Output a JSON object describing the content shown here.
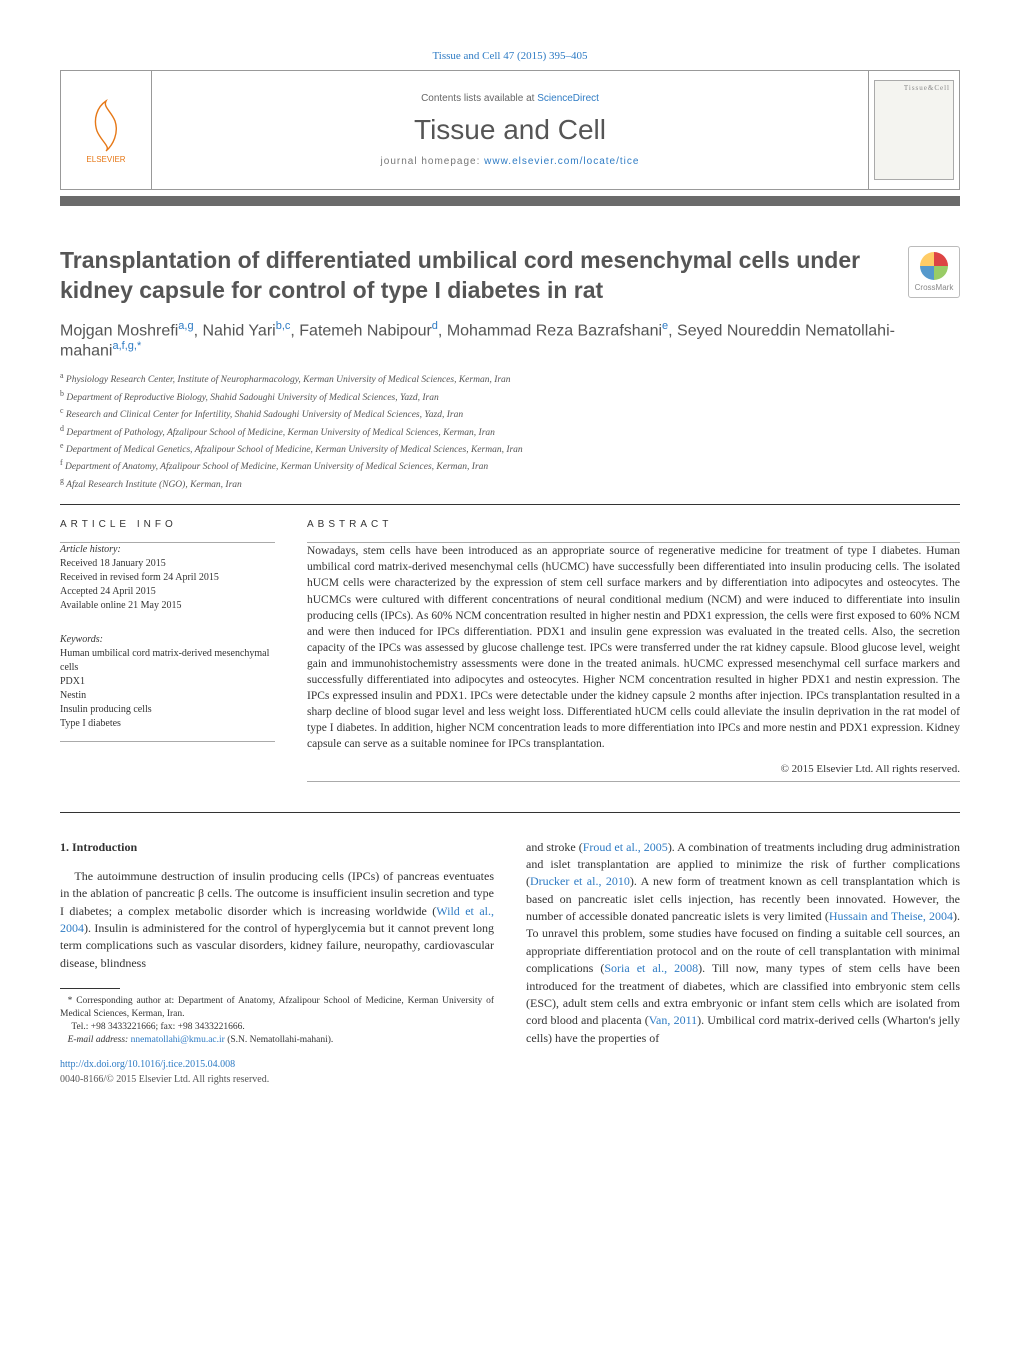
{
  "citation": {
    "journal_short": "Tissue and Cell",
    "volume_issue": "47 (2015) 395–405"
  },
  "header": {
    "contents_prefix": "Contents lists available at ",
    "contents_link": "ScienceDirect",
    "journal": "Tissue and Cell",
    "homepage_prefix": "journal homepage: ",
    "homepage_url": "www.elsevier.com/locate/tice",
    "publisher": "ELSEVIER",
    "cover_label": "Tissue&Cell"
  },
  "crossmark_label": "CrossMark",
  "title": "Transplantation of differentiated umbilical cord mesenchymal cells under kidney capsule for control of type I diabetes in rat",
  "authors_html": "Mojgan Moshrefi<sup>a,g</sup>, Nahid Yari<sup>b,c</sup>, Fatemeh Nabipour<sup>d</sup>, Mohammad Reza Bazrafshani<sup>e</sup>, Seyed Noureddin Nematollahi-mahani<sup>a,f,g,*</sup>",
  "affiliations": [
    {
      "tag": "a",
      "text": "Physiology Research Center, Institute of Neuropharmacology, Kerman University of Medical Sciences, Kerman, Iran"
    },
    {
      "tag": "b",
      "text": "Department of Reproductive Biology, Shahid Sadoughi University of Medical Sciences, Yazd, Iran"
    },
    {
      "tag": "c",
      "text": "Research and Clinical Center for Infertility, Shahid Sadoughi University of Medical Sciences, Yazd, Iran"
    },
    {
      "tag": "d",
      "text": "Department of Pathology, Afzalipour School of Medicine, Kerman University of Medical Sciences, Kerman, Iran"
    },
    {
      "tag": "e",
      "text": "Department of Medical Genetics, Afzalipour School of Medicine, Kerman University of Medical Sciences, Kerman, Iran"
    },
    {
      "tag": "f",
      "text": "Department of Anatomy, Afzalipour School of Medicine, Kerman University of Medical Sciences, Kerman, Iran"
    },
    {
      "tag": "g",
      "text": "Afzal Research Institute (NGO), Kerman, Iran"
    }
  ],
  "info": {
    "label": "article info",
    "history_label": "Article history:",
    "received": "Received 18 January 2015",
    "revised": "Received in revised form 24 April 2015",
    "accepted": "Accepted 24 April 2015",
    "online": "Available online 21 May 2015",
    "keywords_label": "Keywords:",
    "keywords": [
      "Human umbilical cord matrix-derived mesenchymal cells",
      "PDX1",
      "Nestin",
      "Insulin producing cells",
      "Type I diabetes"
    ]
  },
  "abstract": {
    "label": "abstract",
    "text": "Nowadays, stem cells have been introduced as an appropriate source of regenerative medicine for treatment of type I diabetes. Human umbilical cord matrix-derived mesenchymal cells (hUCMC) have successfully been differentiated into insulin producing cells. The isolated hUCM cells were characterized by the expression of stem cell surface markers and by differentiation into adipocytes and osteocytes. The hUCMCs were cultured with different concentrations of neural conditional medium (NCM) and were induced to differentiate into insulin producing cells (IPCs). As 60% NCM concentration resulted in higher nestin and PDX1 expression, the cells were first exposed to 60% NCM and were then induced for IPCs differentiation. PDX1 and insulin gene expression was evaluated in the treated cells. Also, the secretion capacity of the IPCs was assessed by glucose challenge test. IPCs were transferred under the rat kidney capsule. Blood glucose level, weight gain and immunohistochemistry assessments were done in the treated animals. hUCMC expressed mesenchymal cell surface markers and successfully differentiated into adipocytes and osteocytes. Higher NCM concentration resulted in higher PDX1 and nestin expression. The IPCs expressed insulin and PDX1. IPCs were detectable under the kidney capsule 2 months after injection. IPCs transplantation resulted in a sharp decline of blood sugar level and less weight loss. Differentiated hUCM cells could alleviate the insulin deprivation in the rat model of type I diabetes. In addition, higher NCM concentration leads to more differentiation into IPCs and more nestin and PDX1 expression. Kidney capsule can serve as a suitable nominee for IPCs transplantation.",
    "copyright": "© 2015 Elsevier Ltd. All rights reserved."
  },
  "intro": {
    "heading": "1.  Introduction",
    "col1": "The autoimmune destruction of insulin producing cells (IPCs) of pancreas eventuates in the ablation of pancreatic β cells. The outcome is insufficient insulin secretion and type I diabetes; a complex metabolic disorder which is increasing worldwide (Wild et al., 2004). Insulin is administered for the control of hyperglycemia but it cannot prevent long term complications such as vascular disorders, kidney failure, neuropathy, cardiovascular disease, blindness",
    "col2": "and stroke (Froud et al., 2005). A combination of treatments including drug administration and islet transplantation are applied to minimize the risk of further complications (Drucker et al., 2010). A new form of treatment known as cell transplantation which is based on pancreatic islet cells injection, has recently been innovated. However, the number of accessible donated pancreatic islets is very limited (Hussain and Theise, 2004). To unravel this problem, some studies have focused on finding a suitable cell sources, an appropriate differentiation protocol and on the route of cell transplantation with minimal complications (Soria et al., 2008). Till now, many types of stem cells have been introduced for the treatment of diabetes, which are classified into embryonic stem cells (ESC), adult stem cells and extra embryonic or infant stem cells which are isolated from cord blood and placenta (Van, 2011). Umbilical cord matrix-derived cells (Wharton's jelly cells) have the properties of"
  },
  "footnote": {
    "corresponding": "* Corresponding author at: Department of Anatomy, Afzalipour School of Medicine, Kerman University of Medical Sciences, Kerman, Iran.",
    "tel_fax": "Tel.: +98 3433221666; fax: +98 3433221666.",
    "email_label": "E-mail address: ",
    "email": "nnematollahi@kmu.ac.ir",
    "email_suffix": " (S.N. Nematollahi-mahani)."
  },
  "doi": {
    "url": "http://dx.doi.org/10.1016/j.tice.2015.04.008",
    "issn_line": "0040-8166/© 2015 Elsevier Ltd. All rights reserved."
  },
  "colors": {
    "link": "#2e7bc4",
    "bar": "#6b6b6b",
    "elsevier": "#e67817"
  }
}
